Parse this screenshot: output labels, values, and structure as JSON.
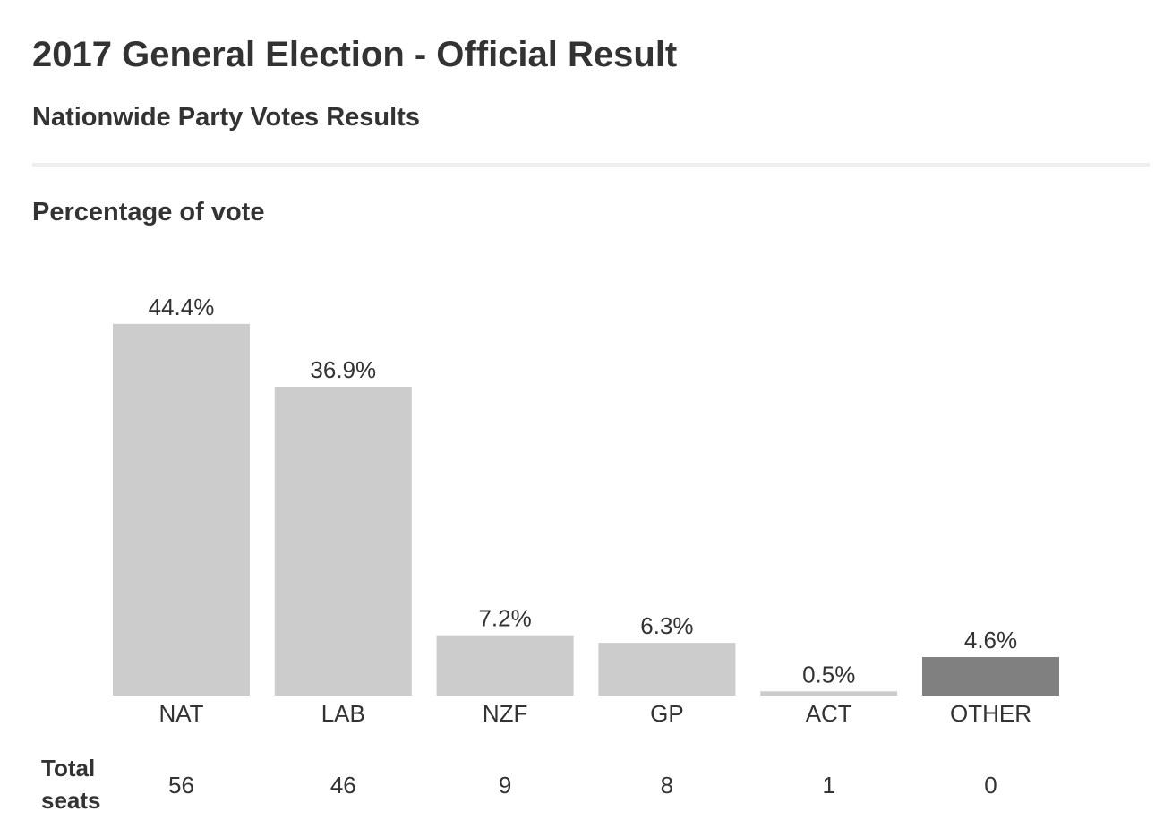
{
  "header": {
    "title": "2017 General Election - Official Result",
    "subtitle": "Nationwide Party Votes Results"
  },
  "section": {
    "title": "Percentage of vote"
  },
  "seats": {
    "row_label": "Total seats",
    "values": [
      "56",
      "46",
      "9",
      "8",
      "1",
      "0"
    ]
  },
  "colors": {
    "bar_default": "#cccccc",
    "bar_other": "#808080",
    "text": "#333333",
    "divider": "#eeeeee"
  },
  "chart_data": {
    "type": "bar",
    "title": "Percentage of vote",
    "categories": [
      "NAT",
      "LAB",
      "NZF",
      "GP",
      "ACT",
      "OTHER"
    ],
    "values": [
      44.4,
      36.9,
      7.2,
      6.3,
      0.5,
      4.6
    ],
    "value_labels": [
      "44.4%",
      "36.9%",
      "7.2%",
      "6.3%",
      "0.5%",
      "4.6%"
    ],
    "bar_colors": [
      "#cccccc",
      "#cccccc",
      "#cccccc",
      "#cccccc",
      "#cccccc",
      "#808080"
    ],
    "xlabel": "",
    "ylabel": "",
    "grid": false,
    "legend": "none"
  }
}
